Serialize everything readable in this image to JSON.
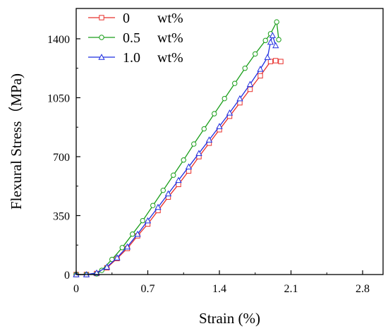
{
  "chart_data": {
    "type": "line",
    "xlabel": "Strain (%)",
    "ylabel": "Flexural Stress（MPa)",
    "xlim": [
      0,
      3.0
    ],
    "ylim": [
      0,
      1580
    ],
    "x_ticks": [
      0,
      0.7,
      1.4,
      2.1,
      2.8
    ],
    "x_tick_labels": [
      "0",
      "0.7",
      "1.4",
      "2.1",
      "2.8"
    ],
    "y_ticks": [
      0,
      350,
      700,
      1050,
      1400
    ],
    "y_tick_labels": [
      "0",
      "350",
      "700",
      "1050",
      "1400"
    ],
    "grid": false,
    "legend_position": "top-left",
    "series": [
      {
        "name": "0",
        "unit": "wt%",
        "color": "#e8302c",
        "marker": "square",
        "points": [
          [
            0,
            0
          ],
          [
            0.1,
            0
          ],
          [
            0.2,
            6
          ],
          [
            0.3,
            40
          ],
          [
            0.4,
            95
          ],
          [
            0.5,
            155
          ],
          [
            0.6,
            230
          ],
          [
            0.7,
            300
          ],
          [
            0.8,
            380
          ],
          [
            0.9,
            460
          ],
          [
            1.0,
            535
          ],
          [
            1.1,
            615
          ],
          [
            1.2,
            700
          ],
          [
            1.3,
            780
          ],
          [
            1.4,
            860
          ],
          [
            1.5,
            940
          ],
          [
            1.6,
            1020
          ],
          [
            1.7,
            1100
          ],
          [
            1.8,
            1180
          ],
          [
            1.9,
            1265
          ],
          [
            1.95,
            1270
          ],
          [
            2.0,
            1265
          ]
        ]
      },
      {
        "name": "0.5",
        "unit": "wt%",
        "color": "#1a9e1a",
        "marker": "circle",
        "points": [
          [
            0,
            0
          ],
          [
            0.1,
            0
          ],
          [
            0.2,
            4
          ],
          [
            0.25,
            25
          ],
          [
            0.35,
            90
          ],
          [
            0.45,
            160
          ],
          [
            0.55,
            240
          ],
          [
            0.65,
            320
          ],
          [
            0.75,
            410
          ],
          [
            0.85,
            500
          ],
          [
            0.95,
            590
          ],
          [
            1.05,
            680
          ],
          [
            1.15,
            775
          ],
          [
            1.25,
            865
          ],
          [
            1.35,
            955
          ],
          [
            1.45,
            1045
          ],
          [
            1.55,
            1135
          ],
          [
            1.65,
            1225
          ],
          [
            1.75,
            1310
          ],
          [
            1.85,
            1390
          ],
          [
            1.9,
            1430
          ],
          [
            1.96,
            1500
          ],
          [
            1.98,
            1395
          ]
        ]
      },
      {
        "name": "1.0",
        "unit": "wt%",
        "color": "#1f2ee0",
        "marker": "triangle",
        "points": [
          [
            0,
            0
          ],
          [
            0.1,
            0
          ],
          [
            0.2,
            10
          ],
          [
            0.3,
            45
          ],
          [
            0.4,
            100
          ],
          [
            0.5,
            165
          ],
          [
            0.6,
            240
          ],
          [
            0.7,
            320
          ],
          [
            0.8,
            400
          ],
          [
            0.9,
            480
          ],
          [
            1.0,
            560
          ],
          [
            1.1,
            640
          ],
          [
            1.2,
            720
          ],
          [
            1.3,
            800
          ],
          [
            1.4,
            880
          ],
          [
            1.5,
            960
          ],
          [
            1.6,
            1045
          ],
          [
            1.7,
            1130
          ],
          [
            1.8,
            1220
          ],
          [
            1.87,
            1290
          ],
          [
            1.9,
            1380
          ],
          [
            1.92,
            1420
          ],
          [
            1.95,
            1360
          ]
        ]
      }
    ]
  }
}
